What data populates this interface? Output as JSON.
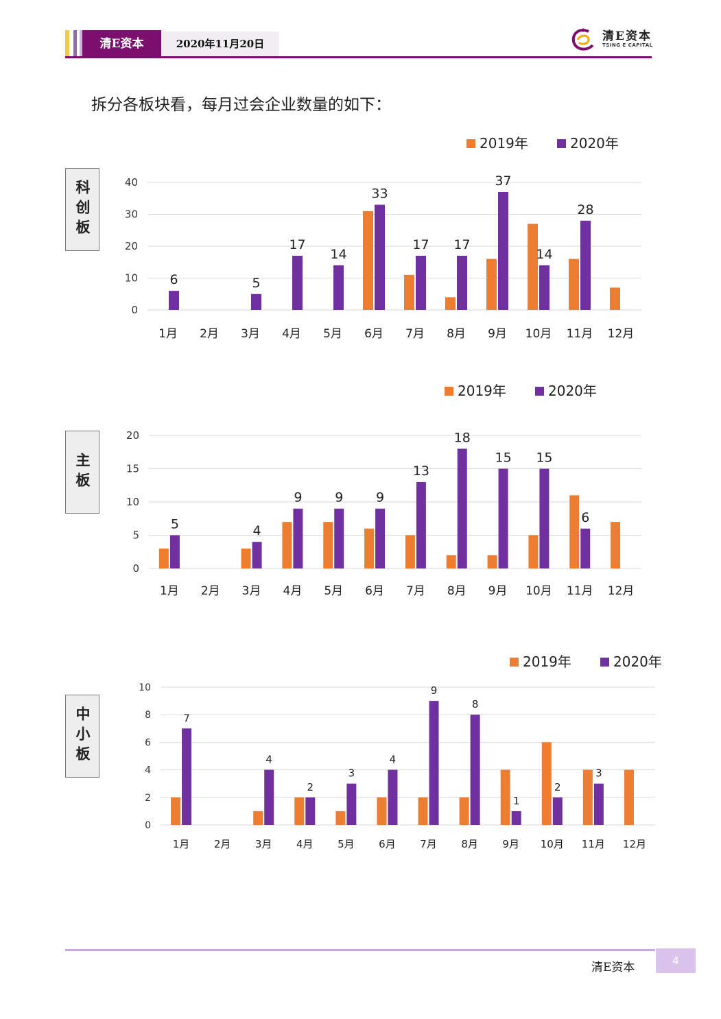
{
  "header": {
    "brand": "清E资本",
    "date": "2020年11月20日",
    "stripe_colors": [
      "#f2c94c",
      "#8e6bb0",
      "#5b2a7e",
      "#c9b6dc"
    ],
    "accent": "#7a0f6e"
  },
  "logo": {
    "cn": "清E资本",
    "en": "TSING E CAPITAL",
    "icon": "swirl-logo-icon"
  },
  "intro_text": "拆分各板块看，每月过会企业数量的如下：",
  "colors": {
    "2019": "#ed7d31",
    "2020": "#7030a0",
    "grid": "#d9d9d9"
  },
  "chart_data": [
    {
      "type": "bar",
      "board": "科创板",
      "categories": [
        "1月",
        "2月",
        "3月",
        "4月",
        "5月",
        "6月",
        "7月",
        "8月",
        "9月",
        "10月",
        "11月",
        "12月"
      ],
      "series": [
        {
          "name": "2019年",
          "values": [
            0,
            0,
            0,
            0,
            0,
            31,
            11,
            4,
            16,
            27,
            16,
            7
          ],
          "labels": []
        },
        {
          "name": "2020年",
          "values": [
            6,
            0,
            5,
            17,
            14,
            33,
            17,
            17,
            37,
            14,
            28,
            0
          ],
          "labels": [
            "6",
            "",
            "5",
            "17",
            "14",
            "33",
            "17",
            "17",
            "37",
            "14",
            "28",
            ""
          ]
        }
      ],
      "yticks": [
        "0",
        "10",
        "20",
        "30",
        "40"
      ],
      "ylim": [
        0,
        40
      ],
      "grid": true,
      "legend": "top-right"
    },
    {
      "type": "bar",
      "board": "主板",
      "categories": [
        "1月",
        "2月",
        "3月",
        "4月",
        "5月",
        "6月",
        "7月",
        "8月",
        "9月",
        "10月",
        "11月",
        "12月"
      ],
      "series": [
        {
          "name": "2019年",
          "values": [
            3,
            0,
            3,
            7,
            7,
            6,
            5,
            2,
            2,
            5,
            11,
            7
          ],
          "labels": []
        },
        {
          "name": "2020年",
          "values": [
            5,
            0,
            4,
            9,
            9,
            9,
            13,
            18,
            15,
            15,
            6,
            0
          ],
          "labels": [
            "5",
            "",
            "4",
            "9",
            "9",
            "9",
            "13",
            "18",
            "15",
            "15",
            "6",
            ""
          ]
        }
      ],
      "yticks": [
        "0",
        "5",
        "10",
        "15",
        "20"
      ],
      "ylim": [
        0,
        20
      ],
      "grid": true,
      "legend": "top-right"
    },
    {
      "type": "bar",
      "board": "中小板",
      "categories": [
        "1月",
        "2月",
        "3月",
        "4月",
        "5月",
        "6月",
        "7月",
        "8月",
        "9月",
        "10月",
        "11月",
        "12月"
      ],
      "series": [
        {
          "name": "2019年",
          "values": [
            2,
            0,
            1,
            2,
            1,
            2,
            2,
            2,
            4,
            6,
            4,
            4
          ],
          "labels": []
        },
        {
          "name": "2020年",
          "values": [
            7,
            0,
            4,
            2,
            3,
            4,
            9,
            8,
            1,
            2,
            3,
            0
          ],
          "labels": [
            "7",
            "",
            "4",
            "2",
            "3",
            "4",
            "9",
            "8",
            "1",
            "2",
            "3",
            ""
          ]
        }
      ],
      "yticks": [
        "0",
        "2",
        "4",
        "6",
        "8",
        "10"
      ],
      "ylim": [
        0,
        10
      ],
      "grid": true,
      "legend": "top-right"
    }
  ],
  "footer": {
    "brand": "清E资本",
    "page": "4"
  }
}
